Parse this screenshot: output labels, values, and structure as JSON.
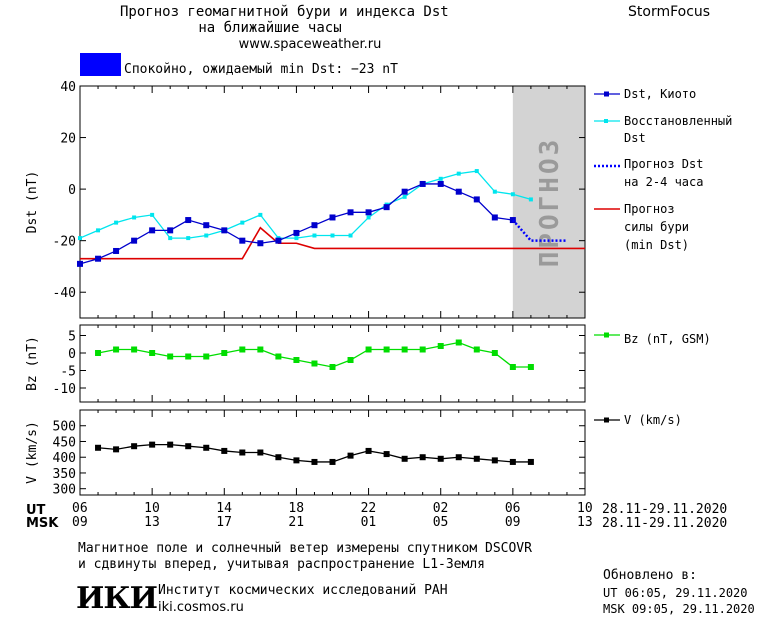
{
  "header": {
    "title_line1": "Прогноз геомагнитной бури и индекса Dst",
    "title_line2": "на ближайшие часы",
    "website": "www.spaceweather.ru",
    "brand": "StormFocus"
  },
  "status": {
    "text": "Спокойно, ожидаемый min Dst: −23 nT",
    "color": "#0000ff"
  },
  "legend": {
    "dst_kyoto": "Dst, Киото",
    "dst_restored_line1": "Восстановленный",
    "dst_restored_line2": "Dst",
    "forecast_dst_line1": "Прогноз Dst",
    "forecast_dst_line2": "на 2-4 часа",
    "storm_forecast_line1": "Прогноз",
    "storm_forecast_line2": "силы бури",
    "storm_forecast_line3": "(min Dst)",
    "bz": "Bz (nT, GSM)",
    "v": "V (km/s)"
  },
  "time_axis": {
    "ut_label": "UT",
    "msk_label": "MSK",
    "ut_ticks": [
      "06",
      "10",
      "14",
      "18",
      "22",
      "02",
      "06",
      "10"
    ],
    "msk_ticks": [
      "09",
      "13",
      "17",
      "21",
      "01",
      "05",
      "09",
      "13"
    ],
    "date_range": "28.11-29.11.2020"
  },
  "footer": {
    "line1": "Магнитное поле и солнечный ветер измерены спутником DSCOVR",
    "line2": "и сдвинуты вперед, учитывая распространение L1-Земля",
    "logo_text": "ИКИ",
    "institute": "Институт космических исследований РАН",
    "institute_site": "iki.cosmos.ru",
    "updated_label": "Обновлено в:",
    "updated_ut": "UT  06:05, 29.11.2020",
    "updated_msk": "MSK 09:05, 29.11.2020"
  },
  "forecast_label": "ПРОГНОЗ",
  "colors": {
    "dst_kyoto": "#0000cc",
    "dst_restored": "#00e5ee",
    "forecast_dst": "#0000ff",
    "storm_forecast": "#dd0000",
    "bz": "#00dd00",
    "v": "#000000",
    "forecast_band": "#d3d3d3"
  },
  "chart_data": [
    {
      "type": "line",
      "ylabel": "Dst (nT)",
      "ylim": [
        -50,
        40
      ],
      "yticks": [
        40,
        20,
        0,
        -20,
        -40
      ],
      "xlim": [
        6,
        34
      ],
      "x_unit": "hours UT from 00:00 28.11.2020",
      "forecast_region": [
        30,
        34
      ],
      "series": [
        {
          "name": "Dst, Киото",
          "x": [
            6,
            7,
            8,
            9,
            10,
            11,
            12,
            13,
            14,
            15,
            16,
            17,
            18,
            19,
            20,
            21,
            22,
            23,
            24,
            25,
            26,
            27,
            28,
            29,
            30
          ],
          "values": [
            -29,
            -27,
            -24,
            -20,
            -16,
            -16,
            -12,
            -14,
            -16,
            -20,
            -21,
            -20,
            -17,
            -14,
            -11,
            -9,
            -9,
            -7,
            -1,
            2,
            2,
            -1,
            -4,
            -11,
            -12
          ]
        },
        {
          "name": "Восстановленный Dst",
          "x": [
            6,
            7,
            8,
            9,
            10,
            11,
            12,
            13,
            14,
            15,
            16,
            17,
            18,
            19,
            20,
            21,
            22,
            23,
            24,
            25,
            26,
            27,
            28,
            29,
            30,
            31
          ],
          "values": [
            -19,
            -16,
            -13,
            -11,
            -10,
            -19,
            -19,
            -18,
            -16,
            -13,
            -10,
            -19,
            -19,
            -18,
            -18,
            -18,
            -11,
            -6,
            -3,
            2,
            4,
            6,
            7,
            -1,
            -2,
            -4
          ]
        },
        {
          "name": "Прогноз Dst на 2-4 часа",
          "style": "dotted",
          "x": [
            30,
            31,
            32,
            33
          ],
          "values": [
            -12,
            -20,
            -20,
            -20
          ]
        },
        {
          "name": "Прогноз силы бури (min Dst)",
          "style": "step",
          "x": [
            6,
            15,
            16,
            17,
            18,
            19,
            34
          ],
          "values": [
            -27,
            -27,
            -15,
            -21,
            -21,
            -23,
            -23
          ]
        }
      ]
    },
    {
      "type": "line",
      "ylabel": "Bz (nT)",
      "ylim": [
        -14,
        8
      ],
      "yticks": [
        5,
        0,
        -5,
        -10
      ],
      "xlim": [
        6,
        34
      ],
      "series": [
        {
          "name": "Bz (nT, GSM)",
          "x": [
            7,
            8,
            9,
            10,
            11,
            12,
            13,
            14,
            15,
            16,
            17,
            18,
            19,
            20,
            21,
            22,
            23,
            24,
            25,
            26,
            27,
            28,
            29,
            30,
            31
          ],
          "values": [
            0,
            1,
            1,
            0,
            -1,
            -1,
            -1,
            0,
            1,
            1,
            -1,
            -2,
            -3,
            -4,
            -2,
            1,
            1,
            1,
            1,
            2,
            3,
            1,
            0,
            -4,
            -4
          ]
        }
      ]
    },
    {
      "type": "line",
      "ylabel": "V (km/s)",
      "ylim": [
        280,
        550
      ],
      "yticks": [
        500,
        450,
        400,
        350,
        300
      ],
      "xlim": [
        6,
        34
      ],
      "series": [
        {
          "name": "V (km/s)",
          "x": [
            7,
            8,
            9,
            10,
            11,
            12,
            13,
            14,
            15,
            16,
            17,
            18,
            19,
            20,
            21,
            22,
            23,
            24,
            25,
            26,
            27,
            28,
            29,
            30,
            31
          ],
          "values": [
            430,
            425,
            435,
            440,
            440,
            435,
            430,
            420,
            415,
            415,
            400,
            390,
            385,
            385,
            405,
            420,
            410,
            395,
            400,
            395,
            400,
            395,
            390,
            385,
            385
          ]
        }
      ]
    }
  ]
}
